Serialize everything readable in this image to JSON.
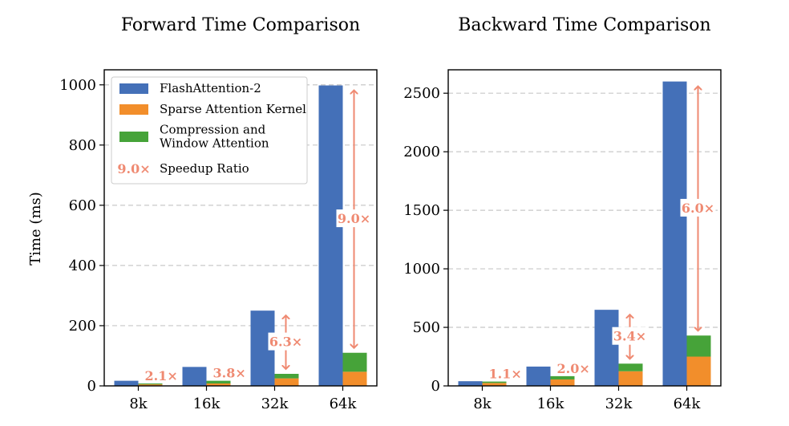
{
  "chart_data": [
    {
      "type": "bar",
      "title": "Forward Time Comparison",
      "ylabel": "Time (ms)",
      "categories": [
        "8k",
        "16k",
        "32k",
        "64k"
      ],
      "ylim": [
        0,
        1050
      ],
      "yticks": [
        0,
        200,
        400,
        600,
        800,
        1000
      ],
      "grid": true,
      "legend_position": "top-left",
      "series": [
        {
          "name": "FlashAttention-2",
          "color": "#4470b8",
          "values": [
            17,
            63,
            250,
            998
          ]
        },
        {
          "name": "Sparse Attention Kernel",
          "color": "#f28e2b",
          "stacked_group": "ours",
          "values": [
            5,
            8,
            25,
            47
          ]
        },
        {
          "name": "Compression and Window Attention",
          "color": "#46a339",
          "stacked_group": "ours",
          "values": [
            3,
            9,
            15,
            63
          ]
        }
      ],
      "speedup": [
        {
          "category": "8k",
          "label": "2.1×",
          "arrow": false
        },
        {
          "category": "16k",
          "label": "3.8×",
          "arrow": false
        },
        {
          "category": "32k",
          "label": "6.3×",
          "arrow": true
        },
        {
          "category": "64k",
          "label": "9.0×",
          "arrow": true
        }
      ],
      "legend": {
        "entries": [
          {
            "label": "FlashAttention-2",
            "color": "#4470b8"
          },
          {
            "label": "Sparse Attention Kernel",
            "color": "#f28e2b"
          },
          {
            "label": "Compression and\nWindow Attention",
            "color": "#46a339"
          },
          {
            "label": "Speedup Ratio",
            "marker_text": "9.0×",
            "color": "#ef8a72"
          }
        ]
      }
    },
    {
      "type": "bar",
      "title": "Backward Time Comparison",
      "ylabel": "",
      "categories": [
        "8k",
        "16k",
        "32k",
        "64k"
      ],
      "ylim": [
        0,
        2700
      ],
      "yticks": [
        0,
        500,
        1000,
        1500,
        2000,
        2500
      ],
      "grid": true,
      "series": [
        {
          "name": "FlashAttention-2",
          "color": "#4470b8",
          "values": [
            40,
            165,
            650,
            2600
          ]
        },
        {
          "name": "Sparse Attention Kernel",
          "color": "#f28e2b",
          "stacked_group": "ours",
          "values": [
            25,
            55,
            125,
            250
          ]
        },
        {
          "name": "Compression and Window Attention",
          "color": "#46a339",
          "stacked_group": "ours",
          "values": [
            12,
            28,
            65,
            180
          ]
        }
      ],
      "speedup": [
        {
          "category": "8k",
          "label": "1.1×",
          "arrow": false
        },
        {
          "category": "16k",
          "label": "2.0×",
          "arrow": false
        },
        {
          "category": "32k",
          "label": "3.4×",
          "arrow": true
        },
        {
          "category": "64k",
          "label": "6.0×",
          "arrow": true
        }
      ]
    }
  ]
}
